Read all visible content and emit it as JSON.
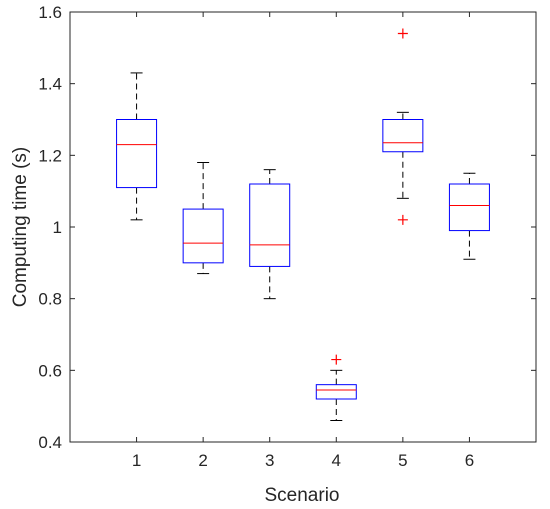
{
  "chart_data": {
    "type": "boxplot",
    "title": "",
    "xlabel": "Scenario",
    "ylabel": "Computing time (s)",
    "ylim": [
      0.4,
      1.6
    ],
    "yticks": [
      0.4,
      0.6,
      0.8,
      1,
      1.2,
      1.4,
      1.6
    ],
    "ytick_labels": [
      "0.4",
      "0.6",
      "0.8",
      "1",
      "1.2",
      "1.4",
      "1.6"
    ],
    "categories": [
      "1",
      "2",
      "3",
      "4",
      "5",
      "6"
    ],
    "grid": false,
    "legend": "none",
    "boxes": [
      {
        "category": "1",
        "whisker_low": 1.02,
        "q1": 1.11,
        "median": 1.23,
        "q3": 1.3,
        "whisker_high": 1.43,
        "outliers": []
      },
      {
        "category": "2",
        "whisker_low": 0.87,
        "q1": 0.9,
        "median": 0.955,
        "q3": 1.05,
        "whisker_high": 1.18,
        "outliers": []
      },
      {
        "category": "3",
        "whisker_low": 0.8,
        "q1": 0.89,
        "median": 0.95,
        "q3": 1.12,
        "whisker_high": 1.16,
        "outliers": []
      },
      {
        "category": "4",
        "whisker_low": 0.46,
        "q1": 0.52,
        "median": 0.545,
        "q3": 0.56,
        "whisker_high": 0.6,
        "outliers": [
          0.63
        ]
      },
      {
        "category": "5",
        "whisker_low": 1.08,
        "q1": 1.21,
        "median": 1.235,
        "q3": 1.3,
        "whisker_high": 1.32,
        "outliers": [
          1.54,
          1.02
        ]
      },
      {
        "category": "6",
        "whisker_low": 0.91,
        "q1": 0.99,
        "median": 1.06,
        "q3": 1.12,
        "whisker_high": 1.15,
        "outliers": []
      }
    ],
    "colors": {
      "box": "#0000ff",
      "median": "#ff0000",
      "whisker": "#000000",
      "outlier": "#ff0000",
      "axis": "#262626"
    }
  }
}
